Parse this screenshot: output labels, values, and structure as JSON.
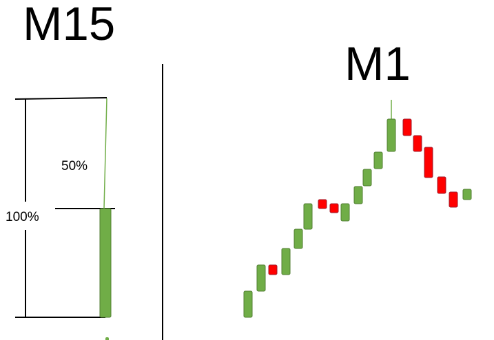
{
  "left_panel": {
    "title": "M15",
    "upper_label": "50%",
    "full_label": "100%"
  },
  "right_panel": {
    "title": "M1"
  },
  "colors": {
    "bull": "#70ad47",
    "bull_border": "#507e32",
    "bear": "#ff0000",
    "bear_border": "#9c1c2c",
    "line": "#000000"
  },
  "chart_data": {
    "type": "candlestick",
    "candles": [
      {
        "open": 9,
        "close": 47
      },
      {
        "open": 47,
        "close": 85
      },
      {
        "open": 85,
        "close": 71
      },
      {
        "open": 71,
        "close": 109
      },
      {
        "open": 109,
        "close": 137
      },
      {
        "open": 137,
        "close": 174
      },
      {
        "open": 180,
        "close": 167
      },
      {
        "open": 174,
        "close": 161
      },
      {
        "open": 149,
        "close": 174
      },
      {
        "open": 174,
        "close": 199
      },
      {
        "open": 200,
        "close": 224
      },
      {
        "open": 225,
        "close": 249
      },
      {
        "open": 250,
        "close": 297,
        "high": 325
      },
      {
        "open": 297,
        "close": 273
      },
      {
        "open": 273,
        "close": 250
      },
      {
        "open": 256,
        "close": 212
      },
      {
        "open": 213,
        "close": 189
      },
      {
        "open": 191,
        "close": 169
      },
      {
        "open": 180,
        "close": 195
      }
    ]
  }
}
